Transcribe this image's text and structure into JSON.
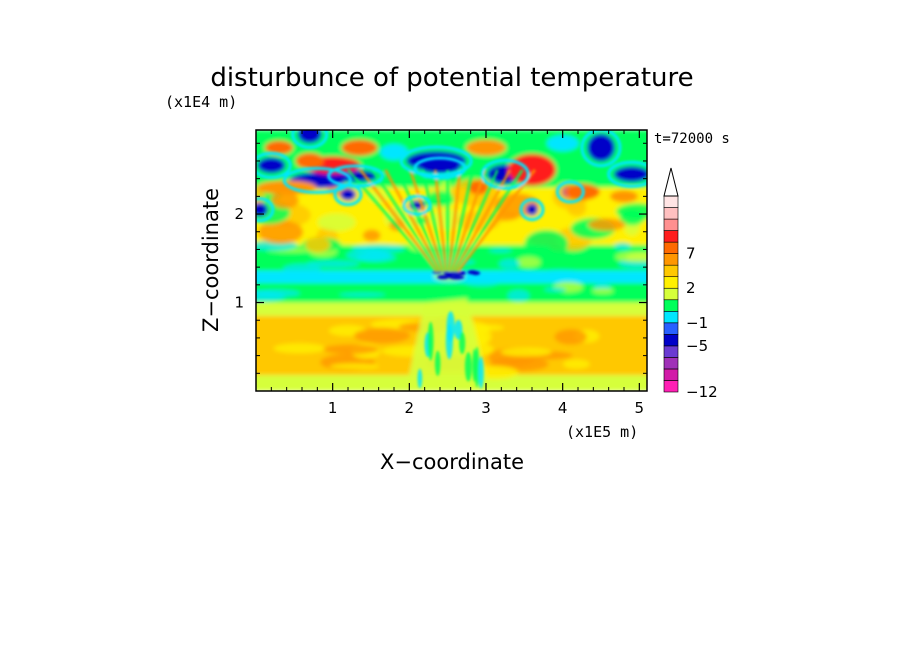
{
  "chart_data": {
    "type": "heatmap",
    "title": "disturbunce of potential temperature",
    "xlabel": "X−coordinate",
    "ylabel": "Z−coordinate",
    "x_unit": "(x1E5 m)",
    "y_unit": "(x1E4 m)",
    "time_label": "t=72000 s",
    "xlim": [
      0,
      5.1
    ],
    "ylim": [
      0,
      2.95
    ],
    "x_ticks": [
      1,
      2,
      3,
      4,
      5
    ],
    "x_tick_labels": [
      "1",
      "2",
      "3",
      "4",
      "5"
    ],
    "y_ticks": [
      1,
      2
    ],
    "y_tick_labels": [
      "1",
      "2"
    ],
    "colorbar": {
      "colors": [
        "#ff1fb4",
        "#d21aa8",
        "#a030b8",
        "#6a3ad2",
        "#0000c8",
        "#2860ff",
        "#00e6ff",
        "#00ff5a",
        "#d6ff3a",
        "#fff000",
        "#ffc800",
        "#ff9600",
        "#ff6a00",
        "#ff1e1e",
        "#ff9090",
        "#ffc0c0",
        "#ffe4e4"
      ],
      "labels": [
        {
          "text": "7",
          "index": 12
        },
        {
          "text": "2",
          "index": 9
        },
        {
          "text": "−1",
          "index": 6
        },
        {
          "text": "−5",
          "index": 4
        },
        {
          "text": "−12",
          "index": 0
        }
      ],
      "extend_top": true
    },
    "field_bands": [
      {
        "z": [
          0.0,
          0.15
        ],
        "level": "light-yellow"
      },
      {
        "z": [
          0.15,
          0.85
        ],
        "level": "orange-yellow"
      },
      {
        "z": [
          0.85,
          1.0
        ],
        "level": "light-yellow"
      },
      {
        "z": [
          1.0,
          1.2
        ],
        "level": "green"
      },
      {
        "z": [
          1.2,
          1.35
        ],
        "level": "cyan"
      },
      {
        "z": [
          1.35,
          1.65
        ],
        "level": "green"
      },
      {
        "z": [
          1.65,
          2.3
        ],
        "level": "mixed-yellow-orange-with-blue-cells"
      },
      {
        "z": [
          2.3,
          2.95
        ],
        "level": "mixed-red-blue-green"
      }
    ]
  }
}
